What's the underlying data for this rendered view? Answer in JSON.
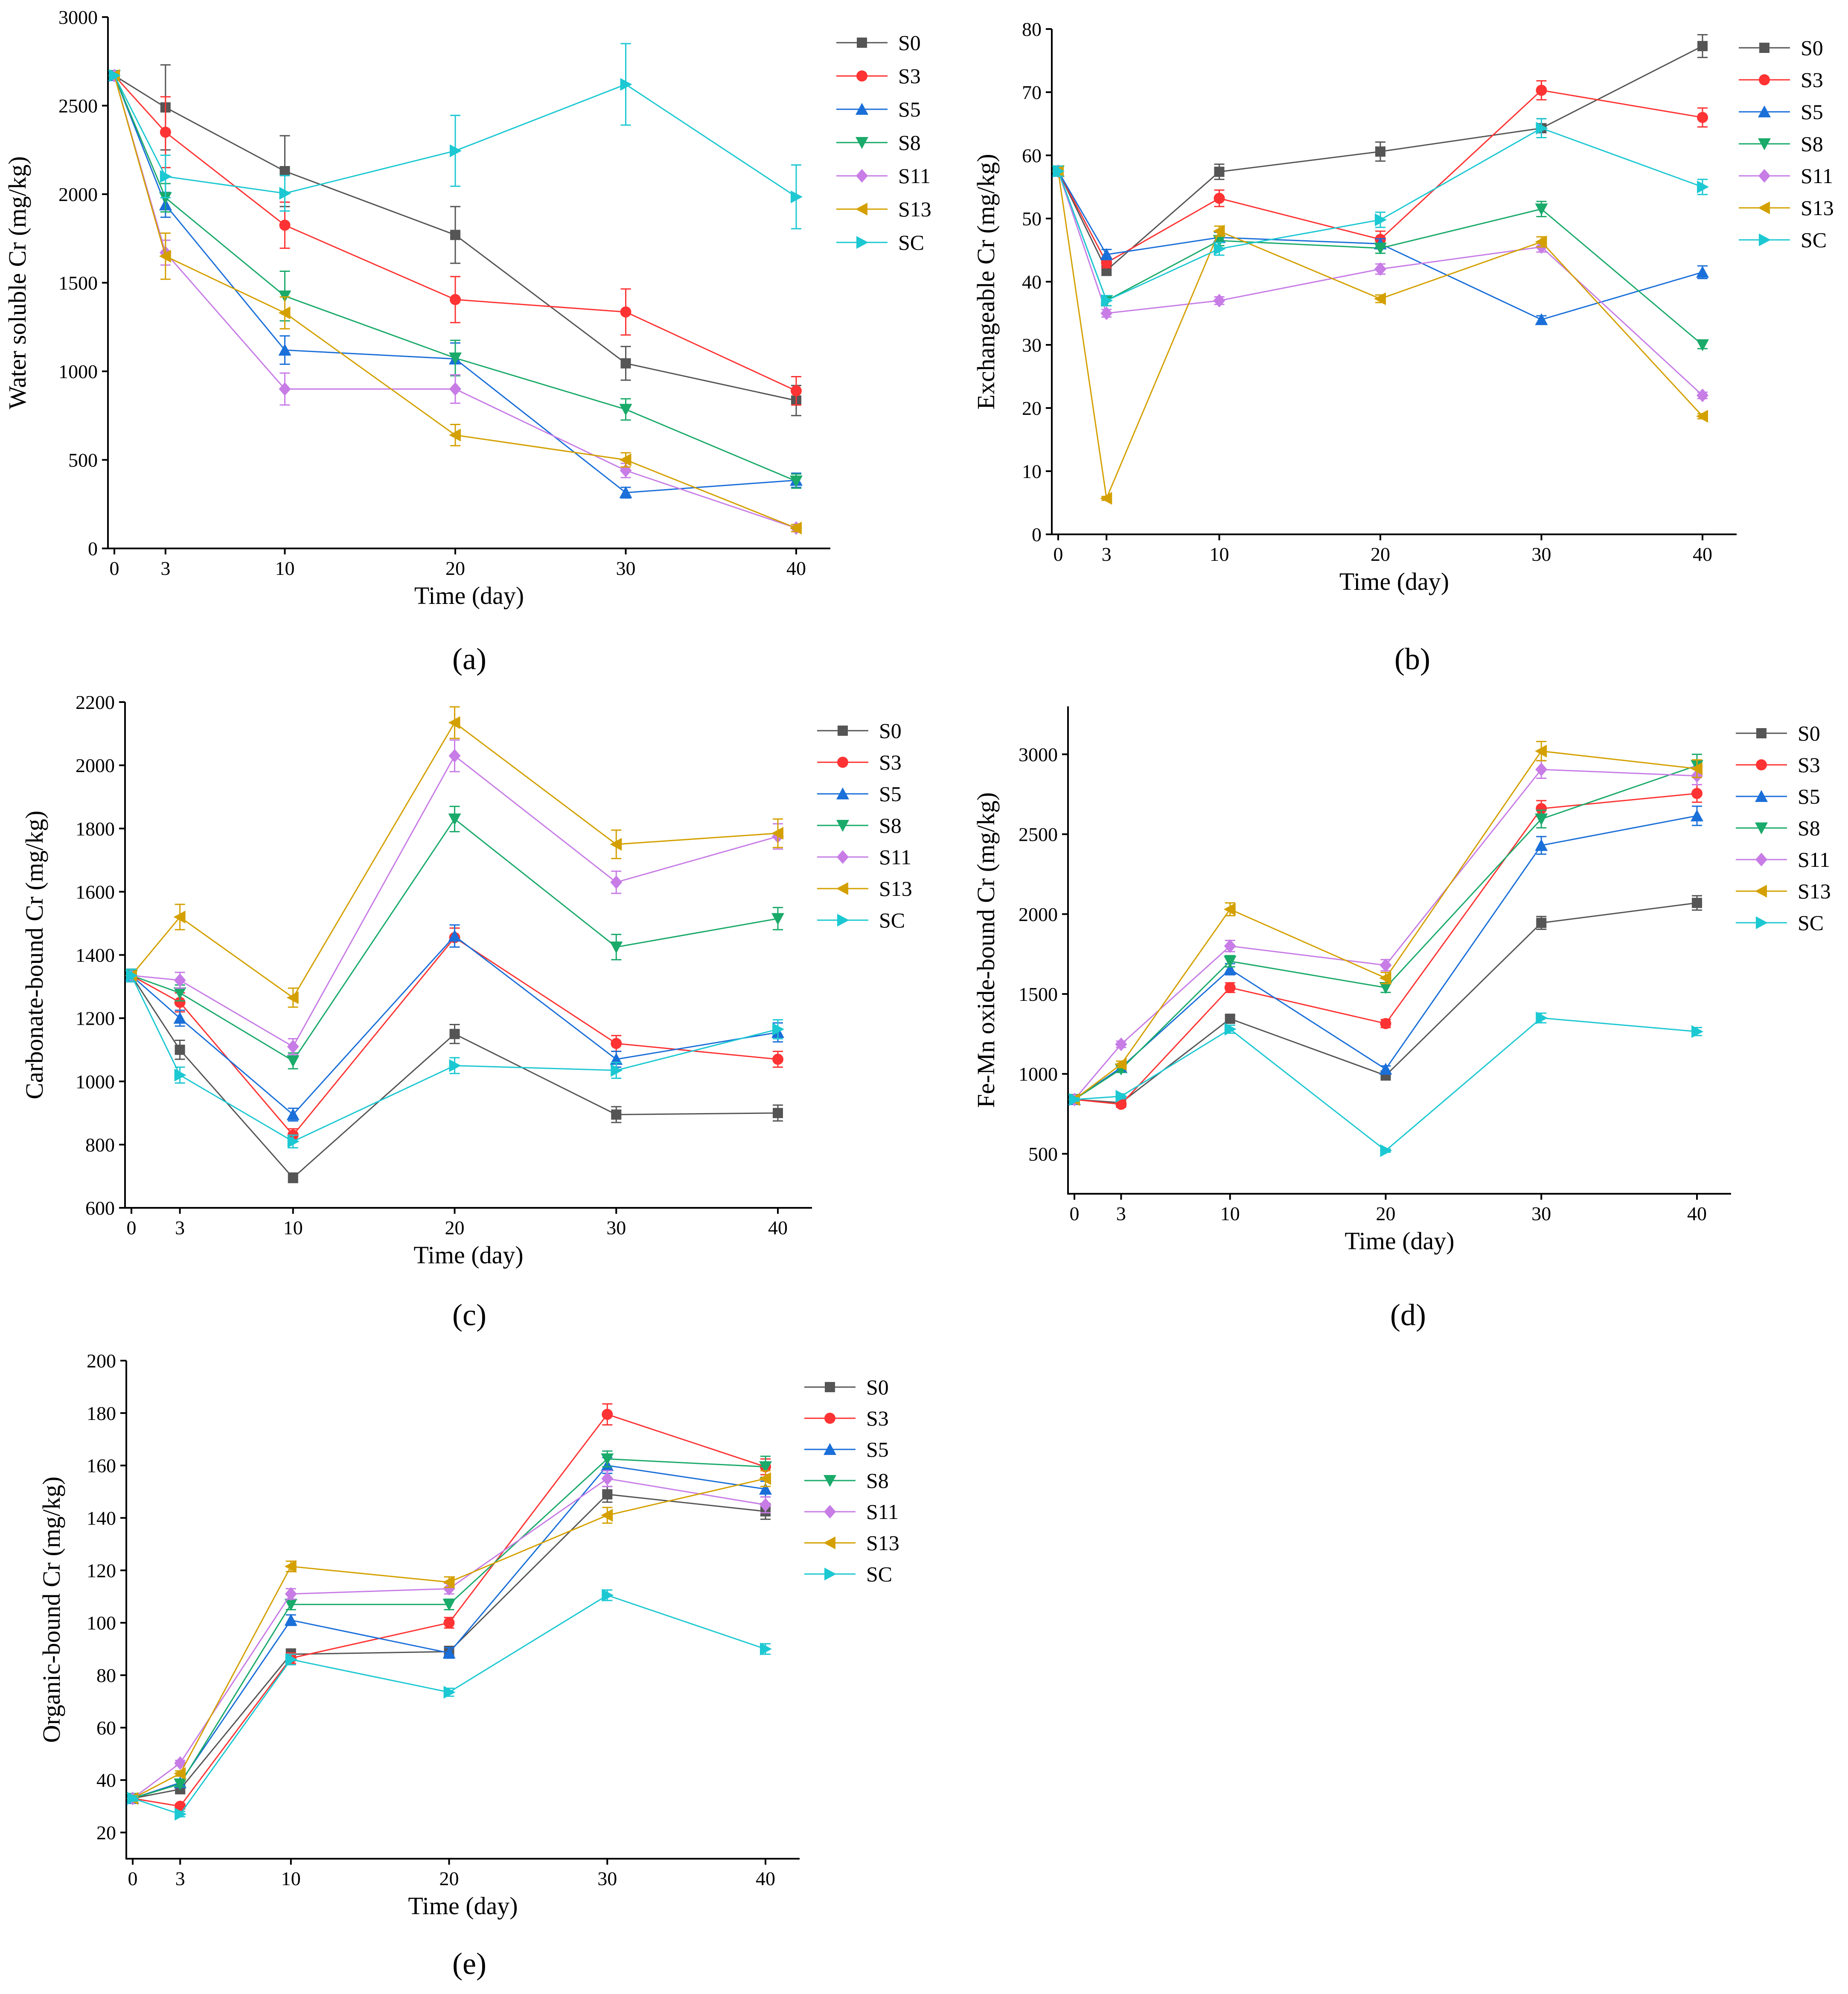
{
  "series_styles": [
    {
      "name": "S0",
      "color": "#555555",
      "marker": "square"
    },
    {
      "name": "S3",
      "color": "#ff3333",
      "marker": "circle"
    },
    {
      "name": "S5",
      "color": "#1a6fd9",
      "marker": "triangle-up"
    },
    {
      "name": "S8",
      "color": "#1aaa6a",
      "marker": "triangle-down"
    },
    {
      "name": "S11",
      "color": "#c77ce6",
      "marker": "diamond"
    },
    {
      "name": "S13",
      "color": "#d4a000",
      "marker": "triangle-left"
    },
    {
      "name": "SC",
      "color": "#1cc8d2",
      "marker": "triangle-right"
    }
  ],
  "chart_data": [
    {
      "id": "a",
      "panel_label": "(a)",
      "type": "line",
      "xlabel": "Time (day)",
      "ylabel": "Water soluble Cr (mg/kg)",
      "x": [
        0,
        3,
        10,
        20,
        30,
        40
      ],
      "x_ticks": [
        "0",
        "3",
        "10",
        "20",
        "30",
        "40"
      ],
      "ylim": [
        0,
        3000
      ],
      "y_ticks": [
        0,
        500,
        1000,
        1500,
        2000,
        2500,
        3000
      ],
      "legend_position": "top-right",
      "series": [
        {
          "name": "S0",
          "values": [
            2670,
            2490,
            2130,
            1770,
            1045,
            835
          ],
          "err": [
            0,
            240,
            200,
            160,
            95,
            85
          ]
        },
        {
          "name": "S3",
          "values": [
            2670,
            2350,
            1825,
            1405,
            1335,
            890
          ],
          "err": [
            0,
            200,
            130,
            130,
            130,
            80
          ]
        },
        {
          "name": "S5",
          "values": [
            2670,
            1940,
            1120,
            1070,
            315,
            385
          ],
          "err": [
            0,
            70,
            80,
            90,
            30,
            40
          ]
        },
        {
          "name": "S8",
          "values": [
            2670,
            1980,
            1425,
            1075,
            785,
            380
          ],
          "err": [
            0,
            80,
            140,
            100,
            60,
            40
          ]
        },
        {
          "name": "S11",
          "values": [
            2670,
            1670,
            900,
            900,
            440,
            115
          ],
          "err": [
            0,
            70,
            90,
            80,
            40,
            20
          ]
        },
        {
          "name": "S13",
          "values": [
            2670,
            1650,
            1330,
            640,
            500,
            115
          ],
          "err": [
            0,
            130,
            90,
            60,
            40,
            20
          ]
        },
        {
          "name": "SC",
          "values": [
            2670,
            2100,
            2005,
            2245,
            2620,
            1985
          ],
          "err": [
            0,
            120,
            100,
            200,
            230,
            180
          ]
        }
      ]
    },
    {
      "id": "b",
      "panel_label": "(b)",
      "type": "line",
      "xlabel": "Time (day)",
      "ylabel": "Exchangeable Cr (mg/kg)",
      "x": [
        0,
        3,
        10,
        20,
        30,
        40
      ],
      "x_ticks": [
        "0",
        "3",
        "10",
        "20",
        "30",
        "40"
      ],
      "ylim": [
        0,
        80
      ],
      "y_ticks": [
        0,
        10,
        20,
        30,
        40,
        50,
        60,
        70,
        80
      ],
      "legend_position": "top-right",
      "series": [
        {
          "name": "S0",
          "values": [
            57.5,
            41.8,
            57.4,
            60.6,
            64.3,
            77.3
          ],
          "err": [
            0.8,
            0.8,
            1.2,
            1.5,
            1.5,
            1.8
          ]
        },
        {
          "name": "S3",
          "values": [
            57.5,
            43.0,
            53.2,
            46.7,
            70.3,
            66.0
          ],
          "err": [
            0.8,
            0.8,
            1.3,
            1.3,
            1.5,
            1.5
          ]
        },
        {
          "name": "S5",
          "values": [
            57.5,
            44.3,
            47.0,
            46.0,
            34.0,
            41.5
          ],
          "err": [
            0.8,
            0.8,
            0.8,
            0.8,
            0.6,
            1.0
          ]
        },
        {
          "name": "S8",
          "values": [
            57.5,
            37.0,
            46.5,
            45.3,
            51.5,
            30.0
          ],
          "err": [
            0.8,
            0.8,
            0.8,
            0.8,
            1.2,
            0.6
          ]
        },
        {
          "name": "S11",
          "values": [
            57.5,
            35.0,
            37.0,
            42.0,
            45.5,
            22.0
          ],
          "err": [
            0.8,
            0.6,
            0.6,
            0.8,
            0.8,
            0.5
          ]
        },
        {
          "name": "S13",
          "values": [
            57.5,
            5.7,
            48.0,
            37.3,
            46.3,
            18.7
          ],
          "err": [
            0.8,
            0.3,
            0.8,
            0.6,
            0.8,
            0.4
          ]
        },
        {
          "name": "SC",
          "values": [
            57.5,
            37.0,
            45.2,
            49.8,
            64.3,
            55.0
          ],
          "err": [
            0.8,
            0.8,
            1.0,
            1.2,
            1.5,
            1.2
          ]
        }
      ]
    },
    {
      "id": "c",
      "panel_label": "(c)",
      "type": "line",
      "xlabel": "Time (day)",
      "ylabel": "Carbonate-bound Cr (mg/kg)",
      "x": [
        0,
        3,
        10,
        20,
        30,
        40
      ],
      "x_ticks": [
        "0",
        "3",
        "10",
        "20",
        "30",
        "40"
      ],
      "ylim": [
        600,
        2200
      ],
      "y_ticks": [
        600,
        800,
        1000,
        1200,
        1400,
        1600,
        1800,
        2000,
        2200
      ],
      "legend_position": "top-right",
      "series": [
        {
          "name": "S0",
          "values": [
            1335,
            1100,
            695,
            1150,
            895,
            900
          ],
          "err": [
            20,
            30,
            15,
            30,
            25,
            25
          ]
        },
        {
          "name": "S3",
          "values": [
            1335,
            1250,
            830,
            1455,
            1120,
            1070
          ],
          "err": [
            20,
            30,
            20,
            30,
            25,
            25
          ]
        },
        {
          "name": "S5",
          "values": [
            1335,
            1200,
            895,
            1460,
            1070,
            1155
          ],
          "err": [
            20,
            25,
            20,
            35,
            25,
            30
          ]
        },
        {
          "name": "S8",
          "values": [
            1335,
            1280,
            1065,
            1830,
            1425,
            1515
          ],
          "err": [
            20,
            25,
            25,
            40,
            40,
            35
          ]
        },
        {
          "name": "S11",
          "values": [
            1335,
            1320,
            1110,
            2030,
            1630,
            1775
          ],
          "err": [
            20,
            25,
            25,
            50,
            35,
            40
          ]
        },
        {
          "name": "S13",
          "values": [
            1335,
            1520,
            1265,
            2135,
            1750,
            1785
          ],
          "err": [
            20,
            40,
            30,
            50,
            45,
            45
          ]
        },
        {
          "name": "SC",
          "values": [
            1335,
            1020,
            810,
            1050,
            1035,
            1165
          ],
          "err": [
            20,
            25,
            20,
            25,
            25,
            30
          ]
        }
      ]
    },
    {
      "id": "d",
      "panel_label": "(d)",
      "type": "line",
      "xlabel": "Time (day)",
      "ylabel": "Fe-Mn oxide-bound Cr (mg/kg)",
      "x": [
        0,
        3,
        10,
        20,
        30,
        40
      ],
      "x_ticks": [
        "0",
        "3",
        "10",
        "20",
        "30",
        "40"
      ],
      "ylim": [
        250,
        3300
      ],
      "y_ticks": [
        500,
        1000,
        1500,
        2000,
        2500,
        3000
      ],
      "legend_position": "top-right",
      "series": [
        {
          "name": "S0",
          "values": [
            840,
            820,
            1345,
            990,
            1945,
            2070
          ],
          "err": [
            10,
            15,
            20,
            20,
            40,
            45
          ]
        },
        {
          "name": "S3",
          "values": [
            840,
            810,
            1540,
            1315,
            2660,
            2755
          ],
          "err": [
            10,
            15,
            30,
            25,
            50,
            55
          ]
        },
        {
          "name": "S5",
          "values": [
            840,
            1040,
            1655,
            1030,
            2430,
            2615
          ],
          "err": [
            10,
            20,
            35,
            20,
            55,
            60
          ]
        },
        {
          "name": "S8",
          "values": [
            840,
            1030,
            1705,
            1540,
            2595,
            2930
          ],
          "err": [
            10,
            20,
            35,
            30,
            55,
            70
          ]
        },
        {
          "name": "S11",
          "values": [
            840,
            1185,
            1800,
            1680,
            2905,
            2865
          ],
          "err": [
            10,
            20,
            35,
            35,
            55,
            55
          ]
        },
        {
          "name": "S13",
          "values": [
            840,
            1060,
            2030,
            1600,
            3020,
            2910
          ],
          "err": [
            10,
            20,
            40,
            35,
            60,
            55
          ]
        },
        {
          "name": "SC",
          "values": [
            840,
            860,
            1280,
            520,
            1350,
            1265
          ],
          "err": [
            10,
            15,
            25,
            10,
            30,
            25
          ]
        }
      ]
    },
    {
      "id": "e",
      "panel_label": "(e)",
      "type": "line",
      "xlabel": "Time (day)",
      "ylabel": "Organic-bound Cr (mg/kg)",
      "x": [
        0,
        3,
        10,
        20,
        30,
        40
      ],
      "x_ticks": [
        "0",
        "3",
        "10",
        "20",
        "30",
        "40"
      ],
      "ylim": [
        10,
        200
      ],
      "y_ticks": [
        20,
        40,
        60,
        80,
        100,
        120,
        140,
        160,
        180,
        200
      ],
      "legend_position": "top-right",
      "series": [
        {
          "name": "S0",
          "values": [
            33,
            36.5,
            88,
            89,
            149,
            142.5
          ],
          "err": [
            1,
            1.5,
            2,
            2,
            3,
            3
          ]
        },
        {
          "name": "S3",
          "values": [
            33,
            30,
            86.5,
            100,
            179.5,
            159.5
          ],
          "err": [
            1,
            1,
            2,
            2,
            4,
            3
          ]
        },
        {
          "name": "S5",
          "values": [
            33,
            39,
            101,
            88.5,
            160,
            151
          ],
          "err": [
            1,
            1,
            2,
            2,
            3,
            3
          ]
        },
        {
          "name": "S8",
          "values": [
            33,
            38.5,
            107,
            107,
            162.5,
            159.5
          ],
          "err": [
            1,
            1,
            2,
            2,
            3,
            4
          ]
        },
        {
          "name": "S11",
          "values": [
            33,
            46.5,
            111,
            113,
            155,
            145
          ],
          "err": [
            1,
            1,
            2,
            2,
            3,
            3
          ]
        },
        {
          "name": "S13",
          "values": [
            33,
            42.5,
            121.5,
            115.5,
            141,
            155
          ],
          "err": [
            1,
            1,
            2,
            2,
            3,
            3
          ]
        },
        {
          "name": "SC",
          "values": [
            33,
            27,
            86,
            73.5,
            110.5,
            90
          ],
          "err": [
            1,
            1,
            2,
            1.5,
            2,
            2
          ]
        }
      ]
    }
  ]
}
